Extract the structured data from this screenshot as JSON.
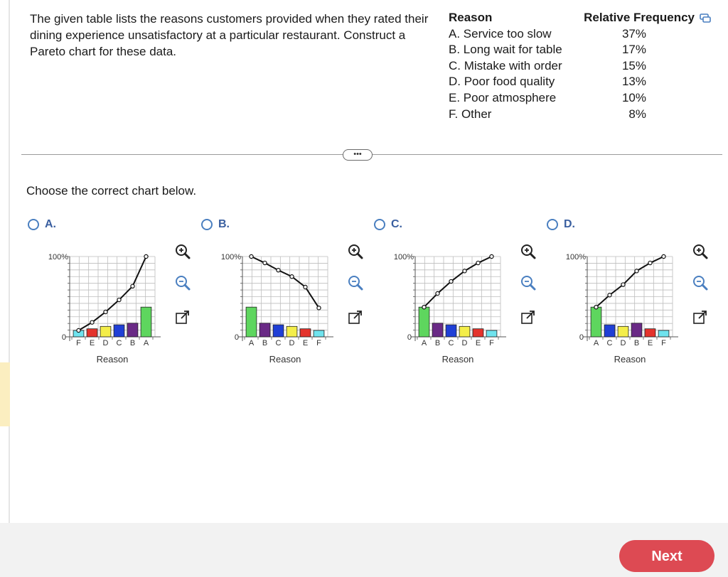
{
  "question": {
    "text": "The given table lists the reasons customers provided when they rated their dining experience unsatisfactory at a particular restaurant. Construct a Pareto chart for these data."
  },
  "table": {
    "header_reason": "Reason",
    "header_freq": "Relative Frequency",
    "rows": [
      {
        "reason": "A. Service too slow",
        "freq": "37%"
      },
      {
        "reason": "B. Long wait for table",
        "freq": "17%"
      },
      {
        "reason": "C. Mistake with order",
        "freq": "15%"
      },
      {
        "reason": "D. Poor food quality",
        "freq": "13%"
      },
      {
        "reason": "E. Poor atmosphere",
        "freq": "10%"
      },
      {
        "reason": "F. Other",
        "freq": "8%"
      }
    ]
  },
  "more_label": "•••",
  "instruction": "Choose the correct chart below.",
  "colors": {
    "A": "#5ed65e",
    "B": "#6a2a86",
    "C": "#1f3fd6",
    "D": "#f4ee4a",
    "E": "#e4332c",
    "F": "#6fe3ee",
    "radio": "#4a7fc0",
    "next": "#dd4a53"
  },
  "icons": [
    "zoom-in-icon",
    "zoom-out-icon",
    "expand-icon",
    "copy-icon"
  ],
  "chart_data": [
    {
      "option": "A.",
      "type": "bar",
      "categories": [
        "F",
        "E",
        "D",
        "C",
        "B",
        "A"
      ],
      "values": [
        8,
        10,
        13,
        15,
        17,
        37
      ],
      "line_values": [
        8,
        18,
        31,
        46,
        63,
        100
      ],
      "ytick_top": "100%",
      "ytick_bottom": "0",
      "xlabel": "Reason"
    },
    {
      "option": "B.",
      "type": "bar",
      "categories": [
        "A",
        "B",
        "C",
        "D",
        "E",
        "F"
      ],
      "values": [
        37,
        17,
        15,
        13,
        10,
        8
      ],
      "line_values": [
        100,
        92,
        83,
        75,
        62,
        36
      ],
      "ytick_top": "100%",
      "ytick_bottom": "0",
      "xlabel": "Reason"
    },
    {
      "option": "C.",
      "type": "bar",
      "categories": [
        "A",
        "B",
        "C",
        "D",
        "E",
        "F"
      ],
      "values": [
        37,
        17,
        15,
        13,
        10,
        8
      ],
      "line_values": [
        37,
        54,
        69,
        82,
        92,
        100
      ],
      "ytick_top": "100%",
      "ytick_bottom": "0",
      "xlabel": "Reason"
    },
    {
      "option": "D.",
      "type": "bar",
      "categories": [
        "A",
        "C",
        "D",
        "B",
        "E",
        "F"
      ],
      "values": [
        37,
        15,
        13,
        17,
        10,
        8
      ],
      "line_values": [
        37,
        52,
        65,
        82,
        92,
        100
      ],
      "ytick_top": "100%",
      "ytick_bottom": "0",
      "xlabel": "Reason"
    }
  ],
  "next_label": "Next"
}
